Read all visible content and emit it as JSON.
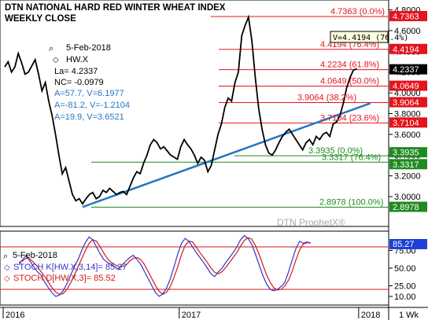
{
  "chart_data": [
    {
      "type": "line",
      "title": "DTN NATIONAL HARD RED WINTER WHEAT INDEX",
      "subtitle": "WEEKLY CLOSE",
      "symbol": "HW.X",
      "date_label": "5-Feb-2018",
      "last_price": "4.2337",
      "info": {
        "la": "La= 4.2337",
        "nc": "NC= -0.0979",
        "a1": "A=57.7, V=6.1977",
        "a2": "A=-81.2, V=-1.2104",
        "a3": "A=19.9, V=3.6521"
      },
      "cursor_readout": "V=4.4194 (76.4%)",
      "watermark": "DTN ProphetX®",
      "ylim": [
        2.72,
        4.88
      ],
      "y_ticks": [
        "4.8000",
        "4.6000",
        "4.4000",
        "4.2000",
        "4.0000",
        "3.8000",
        "3.6000",
        "3.4000",
        "3.2000",
        "3.0000"
      ],
      "y_tick_values": [
        4.8,
        4.6,
        4.4,
        4.2,
        4.0,
        3.8,
        3.6,
        3.4,
        3.2,
        3.0
      ],
      "x_labels": [
        "2016",
        "2017",
        "2018",
        "1 Wk"
      ],
      "x_label_weeks": [
        0,
        52,
        105
      ],
      "week_range": [
        0,
        112
      ],
      "series": [
        {
          "values": [
            4.25,
            4.3,
            4.2,
            4.25,
            4.38,
            4.29,
            4.18,
            4.2,
            4.26,
            4.32,
            4.18,
            4.02,
            4.1,
            3.92,
            3.78,
            3.6,
            3.4,
            3.22,
            3.28,
            3.15,
            3.02,
            2.96,
            2.98,
            2.93,
            2.98,
            3.02,
            3.04,
            2.98,
            3.0,
            3.06,
            3.04,
            3.08,
            3.05,
            3.02,
            3.04,
            3.05,
            3.02,
            3.1,
            3.18,
            3.24,
            3.22,
            3.32,
            3.4,
            3.5,
            3.55,
            3.52,
            3.46,
            3.48,
            3.44,
            3.4,
            3.38,
            3.36,
            3.48,
            3.55,
            3.5,
            3.46,
            3.4,
            3.32,
            3.38,
            3.35,
            3.24,
            3.3,
            3.45,
            3.6,
            3.7,
            3.86,
            3.95,
            3.92,
            4.1,
            4.2,
            4.55,
            4.65,
            4.73,
            4.5,
            4.15,
            3.85,
            3.65,
            3.5,
            3.42,
            3.4,
            3.45,
            3.52,
            3.58,
            3.62,
            3.65,
            3.6,
            3.55,
            3.5,
            3.45,
            3.52,
            3.55,
            3.5,
            3.58,
            3.55,
            3.6,
            3.62,
            3.58,
            3.7,
            3.72,
            3.78,
            3.9,
            4.05,
            4.15,
            4.22,
            4.2337
          ]
        }
      ],
      "trendline": {
        "start_week": 23,
        "start_value": 2.9,
        "end_week": 108,
        "end_value": 3.9
      },
      "fib_levels": [
        {
          "value": 4.7363,
          "label": "4.7363 (0.0%)",
          "tag": "4.7363",
          "color": "#e3141d"
        },
        {
          "value": 4.4194,
          "label": "4.4194 (76.4%)",
          "tag": "4.4194",
          "color": "#e3141d"
        },
        {
          "value": 4.2234,
          "label": "4.2234 (61.8%)",
          "tag": "4.2337",
          "color": "#e3141d"
        },
        {
          "value": 4.0649,
          "label": "4.0649 (50.0%)",
          "tag": "4.0649",
          "color": "#e3141d"
        },
        {
          "value": 3.9064,
          "label": "3.9064 (38.2%)",
          "tag": "3.9064",
          "color": "#e3141d"
        },
        {
          "value": 3.7104,
          "label": "3.7104 (23.6%)",
          "tag": "3.7104",
          "color": "#e3141d"
        },
        {
          "value": 3.3935,
          "label": "3.3935 (0.0%)",
          "tag": "3.3935",
          "color": "#1f8a1f"
        },
        {
          "value": 3.3317,
          "label": "3.3317 (76.4%)",
          "tag": "3.3317",
          "color": "#1f8a1f"
        },
        {
          "value": 2.8978,
          "label": "2.8978 (100.0%)",
          "tag": "2.8978",
          "color": "#1f8a1f"
        }
      ]
    },
    {
      "type": "line",
      "date_label": "5-Feb-2018",
      "ylim": [
        0,
        100
      ],
      "y_ticks": [
        "75.00",
        "50.00",
        "25.00",
        "10.00"
      ],
      "y_tick_values": [
        75,
        50,
        25,
        10
      ],
      "current_value_tag": "85.27",
      "ref_lines": [
        80,
        20
      ],
      "series": [
        {
          "name": "STOCH K[HW.X,3,14]= 85.27",
          "color": "#3434c8",
          "values": [
            55,
            62,
            68,
            60,
            52,
            45,
            40,
            30,
            22,
            15,
            10,
            12,
            18,
            28,
            40,
            52,
            62,
            75,
            86,
            94,
            90,
            80,
            70,
            62,
            58,
            55,
            52,
            48,
            55,
            60,
            65,
            68,
            62,
            55,
            45,
            35,
            25,
            15,
            10,
            14,
            22,
            35,
            52,
            70,
            85,
            92,
            88,
            80,
            72,
            65,
            58,
            50,
            42,
            38,
            45,
            50,
            58,
            65,
            72,
            80,
            90,
            96,
            92,
            84,
            70,
            55,
            40,
            28,
            20,
            18,
            20,
            24,
            30,
            45,
            62,
            78,
            88,
            85,
            87,
            85.27
          ]
        },
        {
          "name": "STOCH D[HW.X,3]= 85.52",
          "color": "#d11a1a",
          "values": [
            58,
            60,
            64,
            63,
            58,
            52,
            45,
            38,
            30,
            22,
            16,
            13,
            14,
            20,
            29,
            40,
            52,
            63,
            75,
            85,
            90,
            88,
            80,
            71,
            63,
            58,
            55,
            52,
            52,
            54,
            60,
            64,
            65,
            62,
            55,
            45,
            35,
            25,
            17,
            13,
            16,
            24,
            37,
            52,
            69,
            82,
            88,
            87,
            80,
            72,
            65,
            58,
            50,
            44,
            42,
            45,
            51,
            58,
            65,
            72,
            81,
            89,
            93,
            91,
            82,
            70,
            55,
            41,
            30,
            22,
            19,
            20,
            25,
            33,
            46,
            62,
            76,
            84,
            86,
            85.52
          ]
        }
      ]
    }
  ]
}
